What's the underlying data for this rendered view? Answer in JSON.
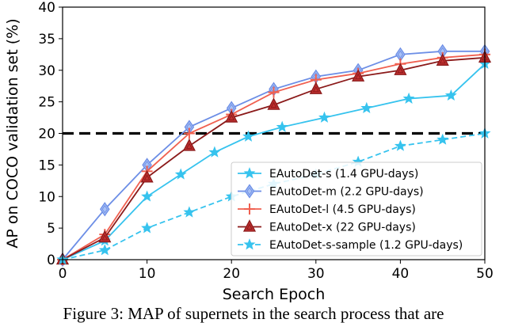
{
  "chart_data": {
    "type": "line",
    "xlabel": "Search Epoch",
    "ylabel": "AP on COCO validation set (%)",
    "xlim": [
      0,
      50
    ],
    "ylim": [
      0,
      40
    ],
    "xticks": [
      0,
      10,
      20,
      30,
      40,
      50
    ],
    "yticks": [
      0,
      5,
      10,
      15,
      20,
      25,
      30,
      35,
      40
    ],
    "legend_position": "lower-right",
    "reference_line": {
      "y": 20,
      "style": "dashed",
      "color": "#000000"
    },
    "series": [
      {
        "name": "EAutoDet-s (1.4 GPU-days)",
        "color": "#36c3ee",
        "marker": "star",
        "linestyle": "solid",
        "x": [
          0,
          5,
          10,
          14,
          18,
          22,
          26,
          31,
          36,
          41,
          46,
          50
        ],
        "y": [
          0,
          3,
          10,
          13.5,
          17,
          19.5,
          21,
          22.5,
          24,
          25.5,
          26,
          31
        ]
      },
      {
        "name": "EAutoDet-m (2.2 GPU-days)",
        "color": "#6c8ee6",
        "marker": "thin-diamond",
        "linestyle": "solid",
        "x": [
          0,
          5,
          10,
          15,
          20,
          25,
          30,
          35,
          40,
          45,
          50
        ],
        "y": [
          0,
          8,
          15,
          21,
          24,
          27,
          29,
          30,
          32.5,
          33,
          33
        ]
      },
      {
        "name": "EAutoDet-l (4.5 GPU-days)",
        "color": "#f06050",
        "marker": "plus",
        "linestyle": "solid",
        "x": [
          0,
          5,
          10,
          15,
          20,
          25,
          30,
          35,
          40,
          45,
          50
        ],
        "y": [
          0,
          4,
          14,
          20,
          23,
          26.5,
          28.5,
          29.5,
          31,
          32,
          32.5
        ]
      },
      {
        "name": "EAutoDet-x (22 GPU-days)",
        "color": "#8b1a1a",
        "marker": "triangle",
        "linestyle": "solid",
        "x": [
          0,
          5,
          10,
          15,
          20,
          25,
          30,
          35,
          40,
          45,
          50
        ],
        "y": [
          0,
          3.5,
          13,
          18,
          22.5,
          24.5,
          27,
          29,
          30,
          31.5,
          32
        ]
      },
      {
        "name": "EAutoDet-s-sample (1.2 GPU-days)",
        "color": "#36c3ee",
        "marker": "star",
        "linestyle": "dashed",
        "x": [
          0,
          5,
          10,
          15,
          20,
          25,
          30,
          35,
          40,
          45,
          50
        ],
        "y": [
          0,
          1.5,
          5,
          7.5,
          10,
          12,
          13.5,
          15.5,
          18,
          19,
          20
        ]
      }
    ]
  },
  "caption": "Figure 3: MAP of supernets in the search process that are"
}
